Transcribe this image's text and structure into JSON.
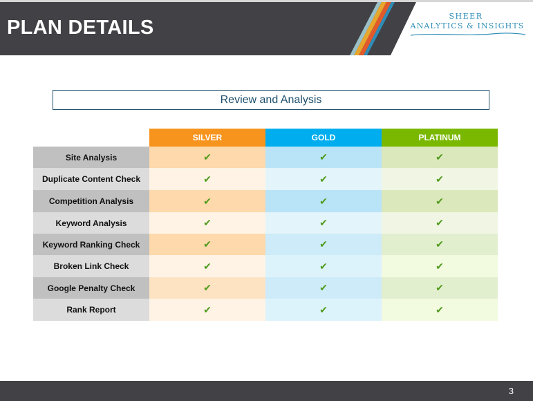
{
  "header": {
    "title": "PLAN DETAILS"
  },
  "logo": {
    "line1": "SHEER",
    "line2": "ANALYTICS & INSIGHTS"
  },
  "section": {
    "title": "Review and Analysis"
  },
  "table": {
    "plans": [
      "SILVER",
      "GOLD",
      "PLATINUM"
    ],
    "plan_colors": [
      "#f7941d",
      "#00aeef",
      "#7ab800"
    ],
    "check_icon": "check-mark-icon",
    "check_glyph": "✔",
    "rows": [
      {
        "feature": "Site Analysis",
        "checks": [
          "✔",
          "✔",
          "✔"
        ]
      },
      {
        "feature": "Duplicate Content Check",
        "checks": [
          "✔",
          "✔",
          "✔"
        ]
      },
      {
        "feature": "Competition Analysis",
        "checks": [
          "✔",
          "✔",
          "✔"
        ]
      },
      {
        "feature": "Keyword Analysis",
        "checks": [
          "✔",
          "✔",
          "✔"
        ]
      },
      {
        "feature": "Keyword Ranking Check",
        "checks": [
          "✔",
          "✔",
          "✔"
        ]
      },
      {
        "feature": "Broken Link Check",
        "checks": [
          "✔",
          "✔",
          "✔"
        ]
      },
      {
        "feature": "Google Penalty Check",
        "checks": [
          "✔",
          "✔",
          "✔"
        ]
      },
      {
        "feature": "Rank Report",
        "checks": [
          "✔",
          "✔",
          "✔"
        ]
      }
    ]
  },
  "footer": {
    "page_number": "3"
  }
}
